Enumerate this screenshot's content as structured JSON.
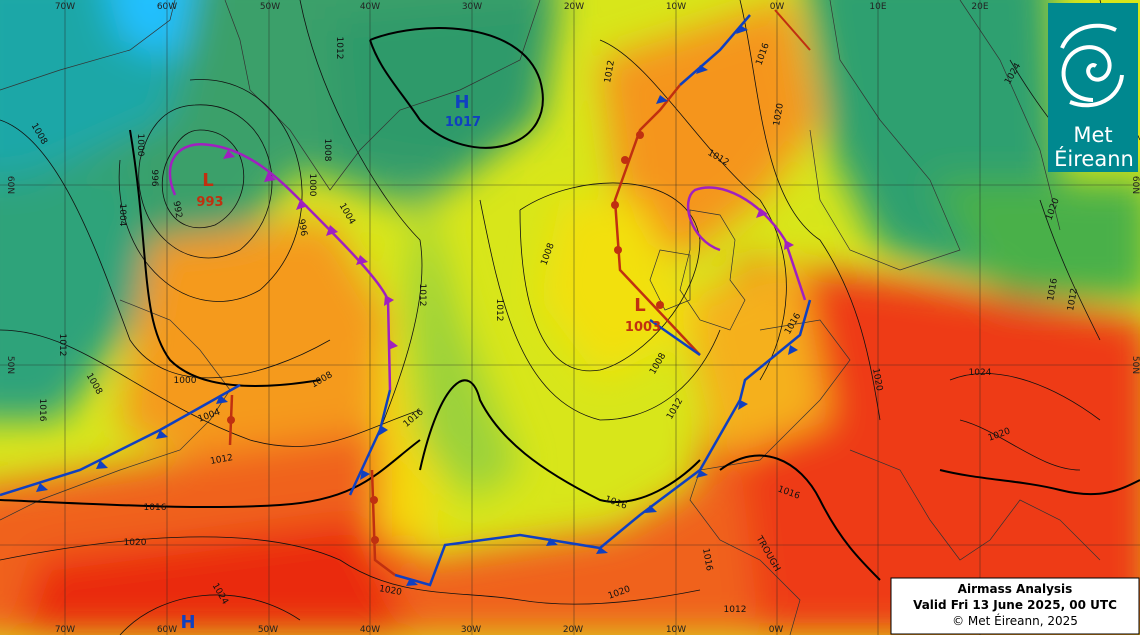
{
  "map": {
    "longitude_labels_top": [
      "70W",
      "60W",
      "50W",
      "40W",
      "30W",
      "20W",
      "10W",
      "0W",
      "10E",
      "20E"
    ],
    "longitude_labels_bottom": [
      "70W",
      "60W",
      "50W",
      "40W",
      "30W",
      "20W",
      "10W",
      "0W"
    ],
    "latitude_labels_left": [
      "60N",
      "50N"
    ],
    "latitude_labels_right": [
      "60N",
      "50N"
    ],
    "pressure_centres": [
      {
        "type": "H",
        "value": "1017"
      },
      {
        "type": "L",
        "value": "993"
      },
      {
        "type": "L",
        "value": "1003"
      },
      {
        "type": "H"
      }
    ],
    "isobar_labels": [
      "1012",
      "1008",
      "1000",
      "1004",
      "996",
      "992",
      "996",
      "1000",
      "1004",
      "1008",
      "1012",
      "1016",
      "1008",
      "1000",
      "1004",
      "1008",
      "1012",
      "1012",
      "1016",
      "1016",
      "1020",
      "1024",
      "1020",
      "1020",
      "1012",
      "1008",
      "1008",
      "1012",
      "1016",
      "1012",
      "1012",
      "1016",
      "1020",
      "1016",
      "1020",
      "1016",
      "1016",
      "1012",
      "1020",
      "1024",
      "1016",
      "1012",
      "1020",
      "1016",
      "1024"
    ],
    "feature_labels": [
      "TROUGH"
    ]
  },
  "info_box": {
    "title": "Airmass Analysis",
    "valid": "Valid Fri 13 June 2025, 00 UTC",
    "copyright": "© Met Éireann, 2025"
  },
  "logo": {
    "line1": "Met",
    "line2": "Éireann"
  }
}
